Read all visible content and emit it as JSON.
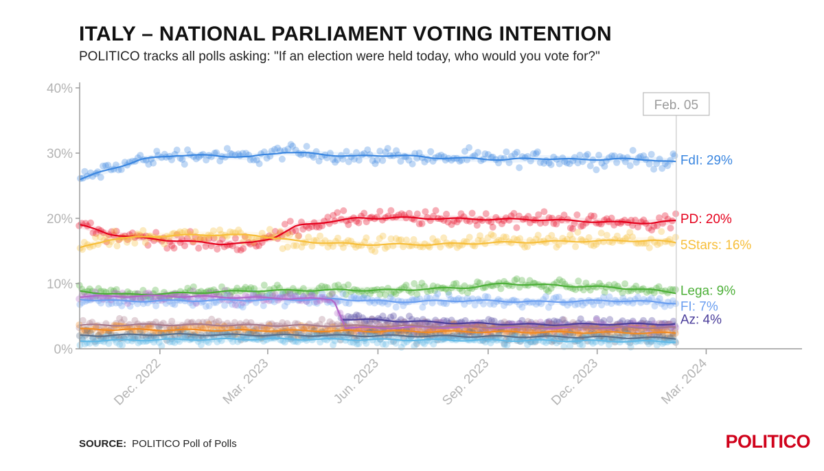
{
  "header": {
    "title": "ITALY – NATIONAL PARLIAMENT VOTING INTENTION",
    "subtitle": "POLITICO tracks all polls asking: \"If an election were held today, who would you vote for?\""
  },
  "footer": {
    "source_label": "SOURCE:",
    "source_text": "POLITICO Poll of Polls",
    "logo_text": "POLITICO"
  },
  "chart_data": {
    "type": "scatter",
    "y_unit": "%",
    "ylim": [
      0,
      40
    ],
    "y_ticks": [
      {
        "value": 0,
        "label": "0%"
      },
      {
        "value": 10,
        "label": "10%"
      },
      {
        "value": 20,
        "label": "20%"
      },
      {
        "value": 30,
        "label": "30%"
      },
      {
        "value": 40,
        "label": "40%"
      }
    ],
    "xlim": [
      "2022-09-25",
      "2024-05-20"
    ],
    "x_ticks": [
      {
        "date": "2022-12-01",
        "label": "Dec. 2022"
      },
      {
        "date": "2023-03-01",
        "label": "Mar. 2023"
      },
      {
        "date": "2023-06-01",
        "label": "Jun. 2023"
      },
      {
        "date": "2023-09-01",
        "label": "Sep. 2023"
      },
      {
        "date": "2023-12-01",
        "label": "Dec. 2023"
      },
      {
        "date": "2024-03-01",
        "label": "Mar. 2024"
      }
    ],
    "current_date": "2024-02-05",
    "current_label": "Feb. 05",
    "grid": false,
    "series": [
      {
        "name": "FdI",
        "end_label": "FdI: 29%",
        "label_value": 29,
        "color": "#3a86e0",
        "trend": [
          [
            "2022-09-25",
            26.0
          ],
          [
            "2022-10-20",
            27.5
          ],
          [
            "2022-11-15",
            29.0
          ],
          [
            "2022-12-15",
            29.7
          ],
          [
            "2023-01-15",
            29.6
          ],
          [
            "2023-02-15",
            29.4
          ],
          [
            "2023-03-15",
            30.2
          ],
          [
            "2023-04-15",
            29.8
          ],
          [
            "2023-05-15",
            29.5
          ],
          [
            "2023-06-15",
            29.7
          ],
          [
            "2023-07-15",
            29.3
          ],
          [
            "2023-08-15",
            29.2
          ],
          [
            "2023-09-15",
            29.0
          ],
          [
            "2023-10-15",
            29.2
          ],
          [
            "2023-11-15",
            29.0
          ],
          [
            "2023-12-15",
            29.1
          ],
          [
            "2024-01-15",
            29.0
          ],
          [
            "2024-02-05",
            28.6
          ]
        ]
      },
      {
        "name": "PD",
        "end_label": "PD: 20%",
        "label_value": 20,
        "color": "#e5001c",
        "trend": [
          [
            "2022-09-25",
            19.0
          ],
          [
            "2022-10-20",
            17.6
          ],
          [
            "2022-11-20",
            16.9
          ],
          [
            "2022-12-20",
            16.5
          ],
          [
            "2023-01-20",
            16.1
          ],
          [
            "2023-02-15",
            16.2
          ],
          [
            "2023-03-05",
            17.0
          ],
          [
            "2023-03-25",
            18.8
          ],
          [
            "2023-04-20",
            19.5
          ],
          [
            "2023-05-15",
            20.0
          ],
          [
            "2023-06-15",
            20.1
          ],
          [
            "2023-08-15",
            19.9
          ],
          [
            "2023-10-15",
            19.8
          ],
          [
            "2023-12-15",
            19.4
          ],
          [
            "2024-01-15",
            19.3
          ],
          [
            "2024-02-05",
            19.6
          ]
        ]
      },
      {
        "name": "5Stars",
        "end_label": "5Stars: 16%",
        "label_value": 16,
        "color": "#f7be39",
        "trend": [
          [
            "2022-09-25",
            15.4
          ],
          [
            "2022-10-20",
            16.8
          ],
          [
            "2022-12-01",
            17.3
          ],
          [
            "2023-01-15",
            17.5
          ],
          [
            "2023-02-20",
            17.4
          ],
          [
            "2023-03-25",
            16.5
          ],
          [
            "2023-05-15",
            16.0
          ],
          [
            "2023-07-15",
            16.0
          ],
          [
            "2023-09-15",
            16.3
          ],
          [
            "2023-11-15",
            16.5
          ],
          [
            "2024-01-15",
            16.6
          ],
          [
            "2024-02-05",
            16.3
          ]
        ]
      },
      {
        "name": "Lega",
        "end_label": "Lega: 9%",
        "label_value": 9,
        "color": "#4caf37",
        "trend": [
          [
            "2022-09-25",
            8.8
          ],
          [
            "2022-11-01",
            8.3
          ],
          [
            "2022-12-15",
            8.5
          ],
          [
            "2023-02-15",
            8.9
          ],
          [
            "2023-04-15",
            9.0
          ],
          [
            "2023-06-15",
            9.0
          ],
          [
            "2023-08-15",
            9.4
          ],
          [
            "2023-09-15",
            10.0
          ],
          [
            "2023-10-15",
            9.8
          ],
          [
            "2023-12-15",
            9.4
          ],
          [
            "2024-01-15",
            9.0
          ],
          [
            "2024-02-05",
            8.6
          ]
        ]
      },
      {
        "name": "FI",
        "end_label": "FI: 7%",
        "label_value": 7,
        "color": "#6a9ef0",
        "trend": [
          [
            "2022-09-25",
            7.6
          ],
          [
            "2022-11-01",
            7.3
          ],
          [
            "2023-01-01",
            7.4
          ],
          [
            "2023-03-01",
            7.5
          ],
          [
            "2023-05-01",
            7.6
          ],
          [
            "2023-06-15",
            7.2
          ],
          [
            "2023-08-15",
            7.4
          ],
          [
            "2023-10-15",
            7.2
          ],
          [
            "2023-12-15",
            7.4
          ],
          [
            "2024-01-15",
            7.2
          ],
          [
            "2024-02-05",
            7.0
          ]
        ]
      },
      {
        "name": "Az",
        "end_label": "Az: 4%",
        "label_value": 4,
        "color": "#4a3d9a",
        "trend": [
          [
            "2023-05-01",
            4.6
          ],
          [
            "2023-06-15",
            4.3
          ],
          [
            "2023-08-15",
            3.9
          ],
          [
            "2023-10-15",
            3.7
          ],
          [
            "2023-12-15",
            3.8
          ],
          [
            "2024-02-05",
            3.8
          ]
        ]
      },
      {
        "name": "",
        "end_label": "",
        "color": "#b266c8",
        "trend": [
          [
            "2022-09-25",
            8.0
          ],
          [
            "2022-12-01",
            8.1
          ],
          [
            "2023-02-01",
            7.9
          ],
          [
            "2023-04-25",
            7.6
          ],
          [
            "2023-05-05",
            3.2
          ],
          [
            "2023-08-01",
            3.3
          ],
          [
            "2023-11-01",
            3.2
          ],
          [
            "2024-02-05",
            3.3
          ]
        ]
      },
      {
        "name": "",
        "end_label": "",
        "color": "#a87a8a",
        "trend": [
          [
            "2022-09-25",
            3.6
          ],
          [
            "2022-12-01",
            3.7
          ],
          [
            "2023-03-01",
            3.6
          ],
          [
            "2023-06-01",
            3.5
          ],
          [
            "2023-09-01",
            3.4
          ],
          [
            "2023-12-01",
            3.3
          ],
          [
            "2024-02-05",
            3.2
          ]
        ]
      },
      {
        "name": "",
        "end_label": "",
        "color": "#f28a1e",
        "trend": [
          [
            "2022-09-25",
            3.0
          ],
          [
            "2022-12-01",
            2.9
          ],
          [
            "2023-03-01",
            2.8
          ],
          [
            "2023-06-01",
            2.7
          ],
          [
            "2023-09-01",
            2.6
          ],
          [
            "2023-12-01",
            2.5
          ],
          [
            "2024-02-05",
            2.4
          ]
        ]
      },
      {
        "name": "",
        "end_label": "",
        "color": "#5a6f8a",
        "trend": [
          [
            "2022-09-25",
            2.0
          ],
          [
            "2022-12-01",
            2.2
          ],
          [
            "2023-03-01",
            2.1
          ],
          [
            "2023-06-01",
            2.0
          ],
          [
            "2023-09-01",
            1.9
          ],
          [
            "2023-12-01",
            1.8
          ],
          [
            "2024-02-05",
            1.6
          ]
        ]
      },
      {
        "name": "",
        "end_label": "",
        "color": "#5fb8e6",
        "trend": [
          [
            "2022-09-25",
            1.2
          ],
          [
            "2022-12-01",
            1.4
          ],
          [
            "2023-03-01",
            1.5
          ],
          [
            "2023-06-01",
            1.4
          ],
          [
            "2023-09-01",
            1.3
          ],
          [
            "2023-12-01",
            1.2
          ],
          [
            "2024-02-05",
            1.1
          ]
        ]
      }
    ]
  }
}
